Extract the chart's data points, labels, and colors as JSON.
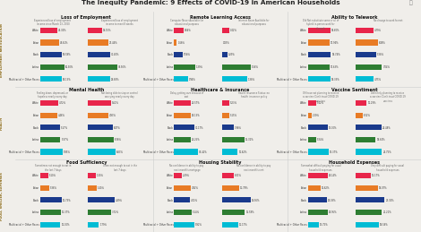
{
  "title": "The Inequity Pandemic: 9 Effects of COVID-19 in American Households",
  "row_labels": [
    "EMPLOYMENT and EDUCATION",
    "HEALTH",
    "FOOD, SHELTER, EXPENSES"
  ],
  "races": [
    "White",
    "Asian",
    "Black",
    "Latino",
    "Multiracial + Other Races"
  ],
  "race_colors": [
    "#e8254a",
    "#e87b25",
    "#1a3a8c",
    "#2e7d32",
    "#00bcd4"
  ],
  "panels": [
    {
      "title": "Loss of Employment",
      "subtitle1": "Experienced loss of employment\nincome since March 13, 2020",
      "subtitle2": "Experienced loss of employment\nincome to meet 8 weeks",
      "values1": [
        42.36,
        46.61,
        53.59,
        60.3,
        54.13
      ],
      "values2": [
        19.15,
        27.44,
        30.4,
        39.56,
        29.88
      ],
      "max1": 75,
      "max2": 50,
      "n_races": 5
    },
    {
      "title": "Remote Learning Access",
      "subtitle1": "Computer Never Available for\neducational purposes",
      "subtitle2": "Internet Never Available for\neducational purposes",
      "values1": [
        0.64,
        0.18,
        0.58,
        1.39,
        0.94
      ],
      "values2": [
        0.42,
        0.03,
        0.29,
        1.56,
        1.38
      ],
      "max1": 2.0,
      "max2": 2.0,
      "n_races": 5
    },
    {
      "title": "Ability to Telework",
      "subtitle1": "Did Not substitute some or all of\nhybrid in-person work for\ntelework",
      "subtitle2": "No change to work format",
      "values1": [
        18.6,
        17.94,
        18.74,
        17.63,
        18.33
      ],
      "values2": [
        4.79,
        6.08,
        5.38,
        7.04,
        4.75
      ],
      "max1": 25,
      "max2": 10,
      "n_races": 5
    },
    {
      "title": "Mental Health",
      "subtitle1": "Feeling down, depressed, or\nhopeless nearly every day",
      "subtitle2": "Not being able to stop or control\nworrying nearly every day",
      "values1": [
        4.72,
        4.46,
        5.17,
        5.37,
        5.95
      ],
      "values2": [
        5.62,
        4.93,
        6.07,
        6.38,
        6.83
      ],
      "max1": 8,
      "max2": 9,
      "n_races": 5
    },
    {
      "title": "Healthcare & Insurance",
      "subtitle1": "Delay getting care because of\ncost",
      "subtitle2": "Health Insurance Status: no\nhealth insurance policy",
      "values1": [
        24.57,
        25.13,
        30.17,
        24.25,
        35.42
      ],
      "values2": [
        5.23,
        5.15,
        7.98,
        15.32,
        10.62
      ],
      "max1": 45,
      "max2": 25,
      "n_races": 5
    },
    {
      "title": "Vaccine Sentiment",
      "subtitle1": "Of those not planning to receive\na vaccine: Don't trust COVID-19\nvaccines",
      "subtitle2": "Definitely planning to receive\na vaccine: Don't trust COVID-19\nvaccines",
      "values1": [
        5.42,
        2.19,
        13.0,
        5.34,
        13.37
      ],
      "values2": [
        10.29,
        6.32,
        24.48,
        18.64,
        24.75
      ],
      "max1": 20,
      "max2": 35,
      "n_races": 5
    },
    {
      "title": "Food Sufficiency",
      "subtitle1": "Sometimes not enough to eat in\nthe last 7 days",
      "subtitle2": "Often not enough to eat in the\nlast 7 days",
      "values1": [
        5.1,
        5.36,
        12.73,
        12.37,
        12.0
      ],
      "values2": [
        1.3,
        1.4,
        4.39,
        3.72,
        1.79
      ],
      "max1": 18,
      "max2": 6,
      "n_races": 5
    },
    {
      "title": "Housing Stability",
      "subtitle1": "No confidence in ability to pay\nnext month's mortgage",
      "subtitle2": "No confidence in ability to pay\nnext month's rent",
      "values1": [
        2.29,
        4.92,
        4.72,
        5.14,
        5.92
      ],
      "values2": [
        8.01,
        11.79,
        19.56,
        15.59,
        11.17
      ],
      "max1": 9,
      "max2": 25,
      "n_races": 5
    },
    {
      "title": "Household Expenses",
      "subtitle1": "Somewhat difficult paying for usual\nhousehold expenses",
      "subtitle2": "Very difficult paying for usual\nhousehold expenses",
      "values1": [
        26.14,
        16.62,
        25.08,
        25.95,
        13.75
      ],
      "values2": [
        12.17,
        18.07,
        23.36,
        21.21,
        18.58
      ],
      "max1": 40,
      "max2": 30,
      "n_races": 5
    }
  ],
  "bg_color": "#f0eeea",
  "title_color": "#222222",
  "text_color": "#333333",
  "label_color": "#555555",
  "subtitle_color": "#666666",
  "row_label_color": "#8B6914",
  "divider_color": "#cccccc"
}
